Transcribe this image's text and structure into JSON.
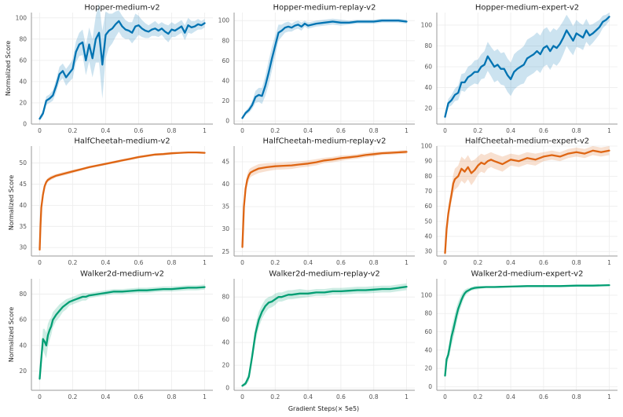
{
  "figure": {
    "xlabel": "Gradient Steps(× 5e5)",
    "ylabel": "Normalized Score",
    "colors": {
      "blue": "#0173b2",
      "orange": "#de6513",
      "green": "#029e73"
    }
  },
  "chart_data": [
    {
      "type": "line",
      "title": "Hopper-medium-v2",
      "color": "blue",
      "xlim": [
        -0.05,
        1.05
      ],
      "ylim": [
        0,
        105
      ],
      "xticks": [
        "0",
        "0.2",
        "0.4",
        "0.6",
        "0.8",
        "1"
      ],
      "yticks": [
        "0",
        "20",
        "40",
        "60",
        "80",
        "100"
      ],
      "x": [
        0,
        0.02,
        0.04,
        0.06,
        0.08,
        0.1,
        0.12,
        0.14,
        0.16,
        0.18,
        0.2,
        0.22,
        0.24,
        0.26,
        0.28,
        0.3,
        0.32,
        0.34,
        0.36,
        0.38,
        0.4,
        0.42,
        0.44,
        0.46,
        0.48,
        0.5,
        0.52,
        0.54,
        0.56,
        0.58,
        0.6,
        0.62,
        0.64,
        0.66,
        0.68,
        0.7,
        0.72,
        0.74,
        0.76,
        0.78,
        0.8,
        0.82,
        0.84,
        0.86,
        0.88,
        0.9,
        0.92,
        0.94,
        0.96,
        0.98,
        1.0
      ],
      "y": [
        5,
        10,
        22,
        24,
        27,
        36,
        47,
        50,
        44,
        48,
        52,
        68,
        75,
        77,
        60,
        75,
        62,
        80,
        86,
        56,
        84,
        88,
        90,
        94,
        97,
        92,
        89,
        88,
        86,
        92,
        93,
        90,
        88,
        87,
        89,
        90,
        88,
        90,
        87,
        85,
        89,
        88,
        90,
        92,
        86,
        93,
        91,
        92,
        94,
        93,
        95
      ],
      "band": [
        2,
        3,
        4,
        4,
        5,
        6,
        7,
        7,
        8,
        8,
        9,
        10,
        11,
        12,
        14,
        16,
        18,
        22,
        28,
        32,
        22,
        16,
        14,
        12,
        10,
        10,
        9,
        8,
        10,
        12,
        9,
        8,
        7,
        6,
        6,
        7,
        6,
        6,
        7,
        8,
        7,
        6,
        6,
        6,
        7,
        7,
        6,
        5,
        5,
        4,
        4
      ]
    },
    {
      "type": "line",
      "title": "Hopper-medium-replay-v2",
      "color": "blue",
      "xlim": [
        -0.05,
        1.05
      ],
      "ylim": [
        -3,
        108
      ],
      "xticks": [
        "0",
        "0.2",
        "0.4",
        "0.6",
        "0.8",
        "1"
      ],
      "yticks": [
        "0",
        "20",
        "40",
        "60",
        "80",
        "100"
      ],
      "x": [
        0,
        0.02,
        0.04,
        0.06,
        0.08,
        0.1,
        0.12,
        0.14,
        0.16,
        0.18,
        0.2,
        0.22,
        0.24,
        0.26,
        0.28,
        0.3,
        0.32,
        0.34,
        0.36,
        0.38,
        0.4,
        0.45,
        0.5,
        0.55,
        0.6,
        0.65,
        0.7,
        0.75,
        0.8,
        0.85,
        0.9,
        0.95,
        1.0
      ],
      "y": [
        3,
        8,
        11,
        16,
        24,
        26,
        25,
        35,
        48,
        62,
        75,
        88,
        90,
        93,
        94,
        93,
        95,
        96,
        94,
        97,
        95,
        97,
        98,
        99,
        98,
        98,
        99,
        99,
        99,
        100,
        100,
        100,
        99
      ],
      "band": [
        1,
        2,
        3,
        4,
        6,
        7,
        8,
        10,
        12,
        12,
        10,
        8,
        6,
        5,
        5,
        4,
        4,
        4,
        4,
        3,
        3,
        3,
        3,
        3,
        3,
        2,
        2,
        2,
        2,
        2,
        2,
        2,
        2
      ]
    },
    {
      "type": "line",
      "title": "Hopper-medium-expert-v2",
      "color": "blue",
      "xlim": [
        -0.05,
        1.05
      ],
      "ylim": [
        5,
        112
      ],
      "xticks": [
        "0",
        "0.2",
        "0.4",
        "0.6",
        "0.8",
        "1"
      ],
      "yticks": [
        "20",
        "40",
        "60",
        "80",
        "100"
      ],
      "x": [
        0,
        0.02,
        0.04,
        0.06,
        0.08,
        0.1,
        0.12,
        0.14,
        0.16,
        0.18,
        0.2,
        0.22,
        0.24,
        0.26,
        0.28,
        0.3,
        0.32,
        0.34,
        0.36,
        0.38,
        0.4,
        0.42,
        0.44,
        0.46,
        0.48,
        0.5,
        0.52,
        0.54,
        0.56,
        0.58,
        0.6,
        0.62,
        0.64,
        0.66,
        0.68,
        0.7,
        0.72,
        0.74,
        0.76,
        0.78,
        0.8,
        0.82,
        0.84,
        0.86,
        0.88,
        0.9,
        0.92,
        0.94,
        0.96,
        0.98,
        1.0
      ],
      "y": [
        12,
        25,
        28,
        33,
        35,
        45,
        45,
        50,
        52,
        55,
        55,
        60,
        62,
        70,
        65,
        60,
        62,
        58,
        58,
        52,
        48,
        55,
        58,
        60,
        62,
        68,
        70,
        72,
        75,
        72,
        78,
        80,
        75,
        80,
        78,
        82,
        88,
        95,
        90,
        85,
        92,
        90,
        88,
        95,
        90,
        92,
        95,
        98,
        103,
        105,
        108
      ],
      "band": [
        3,
        4,
        5,
        6,
        7,
        8,
        9,
        10,
        10,
        11,
        12,
        12,
        13,
        14,
        14,
        15,
        15,
        15,
        16,
        16,
        16,
        17,
        17,
        17,
        18,
        18,
        18,
        18,
        18,
        18,
        18,
        18,
        18,
        17,
        17,
        17,
        16,
        15,
        15,
        14,
        13,
        12,
        12,
        11,
        10,
        9,
        8,
        7,
        6,
        5,
        4
      ]
    },
    {
      "type": "line",
      "title": "HalfCheetah-medium-v2",
      "color": "orange",
      "xlim": [
        -0.05,
        1.05
      ],
      "ylim": [
        28,
        54
      ],
      "xticks": [
        "0",
        "0.2",
        "0.4",
        "0.6",
        "0.8",
        "1"
      ],
      "yticks": [
        "30",
        "35",
        "40",
        "45",
        "50"
      ],
      "x": [
        0,
        0.005,
        0.01,
        0.02,
        0.03,
        0.04,
        0.05,
        0.07,
        0.1,
        0.15,
        0.2,
        0.25,
        0.3,
        0.35,
        0.4,
        0.45,
        0.5,
        0.55,
        0.6,
        0.65,
        0.7,
        0.75,
        0.8,
        0.85,
        0.9,
        0.95,
        1.0
      ],
      "y": [
        29.5,
        35,
        39.5,
        42.5,
        44.5,
        45.5,
        46,
        46.5,
        47,
        47.5,
        48,
        48.5,
        49,
        49.4,
        49.8,
        50.2,
        50.6,
        51,
        51.4,
        51.7,
        52,
        52.1,
        52.3,
        52.4,
        52.5,
        52.5,
        52.4
      ],
      "band": [
        0.3,
        0.5,
        0.6,
        0.6,
        0.6,
        0.5,
        0.5,
        0.5,
        0.4,
        0.4,
        0.4,
        0.3,
        0.3,
        0.3,
        0.3,
        0.3,
        0.3,
        0.3,
        0.3,
        0.3,
        0.3,
        0.3,
        0.3,
        0.2,
        0.2,
        0.2,
        0.2
      ]
    },
    {
      "type": "line",
      "title": "HalfCheetah-medium-replay-v2",
      "color": "orange",
      "xlim": [
        -0.05,
        1.05
      ],
      "ylim": [
        24,
        48.5
      ],
      "xticks": [
        "0",
        "0.2",
        "0.4",
        "0.6",
        "0.8",
        "1"
      ],
      "yticks": [
        "25",
        "30",
        "35",
        "40",
        "45"
      ],
      "x": [
        0,
        0.01,
        0.02,
        0.03,
        0.04,
        0.05,
        0.07,
        0.1,
        0.15,
        0.2,
        0.25,
        0.3,
        0.35,
        0.4,
        0.45,
        0.5,
        0.55,
        0.6,
        0.65,
        0.7,
        0.75,
        0.8,
        0.85,
        0.9,
        0.95,
        1.0
      ],
      "y": [
        26,
        35,
        39,
        41,
        42,
        42.6,
        43,
        43.5,
        43.8,
        44,
        44.1,
        44.2,
        44.4,
        44.6,
        44.9,
        45.3,
        45.5,
        45.8,
        46,
        46.2,
        46.5,
        46.7,
        46.9,
        47,
        47.1,
        47.2
      ],
      "band": [
        0.5,
        1,
        1.2,
        1.2,
        1.2,
        1,
        1,
        1,
        0.9,
        0.8,
        0.8,
        0.8,
        0.7,
        0.7,
        0.7,
        0.6,
        0.6,
        0.6,
        0.5,
        0.5,
        0.5,
        0.5,
        0.4,
        0.4,
        0.4,
        0.4
      ]
    },
    {
      "type": "line",
      "title": "HalfCheetah-medium-expert-v2",
      "color": "orange",
      "xlim": [
        -0.05,
        1.05
      ],
      "ylim": [
        27,
        100
      ],
      "xticks": [
        "0",
        "0.2",
        "0.4",
        "0.6",
        "0.8",
        "1"
      ],
      "yticks": [
        "30",
        "40",
        "50",
        "60",
        "70",
        "80",
        "90",
        "100"
      ],
      "x": [
        0,
        0.01,
        0.02,
        0.03,
        0.04,
        0.05,
        0.06,
        0.08,
        0.1,
        0.12,
        0.14,
        0.16,
        0.18,
        0.2,
        0.22,
        0.24,
        0.26,
        0.28,
        0.3,
        0.35,
        0.4,
        0.45,
        0.5,
        0.55,
        0.6,
        0.65,
        0.7,
        0.75,
        0.8,
        0.85,
        0.9,
        0.95,
        1.0
      ],
      "y": [
        29,
        45,
        55,
        62,
        68,
        75,
        78,
        80,
        85,
        83,
        86,
        82,
        84,
        87,
        89,
        88,
        90,
        91,
        90,
        88,
        91,
        90,
        92,
        91,
        93,
        94,
        93,
        95,
        96,
        95,
        97,
        96,
        97
      ],
      "band": [
        1,
        3,
        4,
        5,
        5,
        6,
        7,
        7,
        8,
        8,
        8,
        8,
        7,
        6,
        6,
        6,
        5,
        5,
        5,
        5,
        4,
        4,
        4,
        4,
        3,
        3,
        3,
        3,
        3,
        3,
        3,
        3,
        3
      ]
    },
    {
      "type": "line",
      "title": "Walker2d-medium-v2",
      "color": "green",
      "xlim": [
        -0.05,
        1.05
      ],
      "ylim": [
        5,
        92
      ],
      "xticks": [
        "0",
        "0.2",
        "0.4",
        "0.6",
        "0.8",
        "1"
      ],
      "yticks": [
        "20",
        "40",
        "60",
        "80"
      ],
      "x": [
        0,
        0.01,
        0.02,
        0.03,
        0.04,
        0.05,
        0.06,
        0.07,
        0.08,
        0.1,
        0.12,
        0.14,
        0.16,
        0.18,
        0.2,
        0.22,
        0.24,
        0.26,
        0.28,
        0.3,
        0.35,
        0.4,
        0.45,
        0.5,
        0.55,
        0.6,
        0.65,
        0.7,
        0.75,
        0.8,
        0.85,
        0.9,
        0.95,
        1.0
      ],
      "y": [
        14,
        30,
        45,
        43,
        40,
        48,
        52,
        55,
        60,
        64,
        67,
        70,
        72,
        74,
        75,
        76,
        77,
        78,
        78,
        79,
        80,
        81,
        82,
        82,
        82.5,
        83,
        83,
        83.5,
        84,
        84,
        84.5,
        85,
        85,
        85.5
      ],
      "band": [
        2,
        4,
        8,
        10,
        10,
        9,
        8,
        7,
        6,
        5,
        5,
        4,
        4,
        3,
        3,
        3,
        3,
        3,
        3,
        2,
        2,
        2,
        2,
        2,
        2,
        2,
        2,
        2,
        2,
        2,
        2,
        2,
        2,
        2
      ]
    },
    {
      "type": "line",
      "title": "Walker2d-medium-replay-v2",
      "color": "green",
      "xlim": [
        -0.05,
        1.05
      ],
      "ylim": [
        -2,
        96
      ],
      "xticks": [
        "0",
        "0.2",
        "0.4",
        "0.6",
        "0.8",
        "1"
      ],
      "yticks": [
        "0",
        "20",
        "40",
        "60",
        "80"
      ],
      "x": [
        0,
        0.02,
        0.04,
        0.06,
        0.08,
        0.1,
        0.12,
        0.14,
        0.16,
        0.18,
        0.2,
        0.22,
        0.24,
        0.26,
        0.28,
        0.3,
        0.35,
        0.4,
        0.45,
        0.5,
        0.55,
        0.6,
        0.65,
        0.7,
        0.75,
        0.8,
        0.85,
        0.9,
        0.95,
        1.0
      ],
      "y": [
        2,
        4,
        10,
        28,
        48,
        60,
        67,
        72,
        75,
        76,
        78,
        80,
        80,
        81,
        82,
        82,
        83,
        83,
        84,
        84,
        85,
        85,
        85.5,
        86,
        86,
        86.5,
        87,
        87,
        88,
        89
      ],
      "band": [
        1,
        2,
        4,
        6,
        7,
        7,
        6,
        6,
        5,
        5,
        5,
        4,
        4,
        4,
        4,
        4,
        4,
        3,
        3,
        3,
        3,
        3,
        3,
        3,
        3,
        3,
        3,
        3,
        3,
        3
      ]
    },
    {
      "type": "line",
      "title": "Walker2d-medium-expert-v2",
      "color": "green",
      "xlim": [
        -0.05,
        1.05
      ],
      "ylim": [
        -4,
        118
      ],
      "xticks": [
        "0",
        "0.2",
        "0.4",
        "0.6",
        "0.8",
        "1"
      ],
      "yticks": [
        "0",
        "20",
        "40",
        "60",
        "80",
        "100"
      ],
      "x": [
        0,
        0.01,
        0.02,
        0.03,
        0.04,
        0.05,
        0.06,
        0.07,
        0.08,
        0.09,
        0.1,
        0.11,
        0.12,
        0.13,
        0.14,
        0.15,
        0.16,
        0.18,
        0.2,
        0.25,
        0.3,
        0.4,
        0.5,
        0.6,
        0.7,
        0.8,
        0.9,
        1.0
      ],
      "y": [
        12,
        30,
        35,
        45,
        55,
        62,
        70,
        78,
        85,
        90,
        95,
        99,
        102,
        104,
        105,
        106,
        107,
        108,
        108.5,
        109,
        109,
        109.5,
        110,
        110,
        110,
        110.5,
        110.5,
        111
      ],
      "band": [
        2,
        4,
        6,
        8,
        10,
        10,
        10,
        9,
        8,
        7,
        6,
        5,
        4,
        3,
        3,
        2,
        2,
        2,
        2,
        1,
        1,
        1,
        1,
        1,
        1,
        1,
        1,
        1
      ]
    }
  ]
}
